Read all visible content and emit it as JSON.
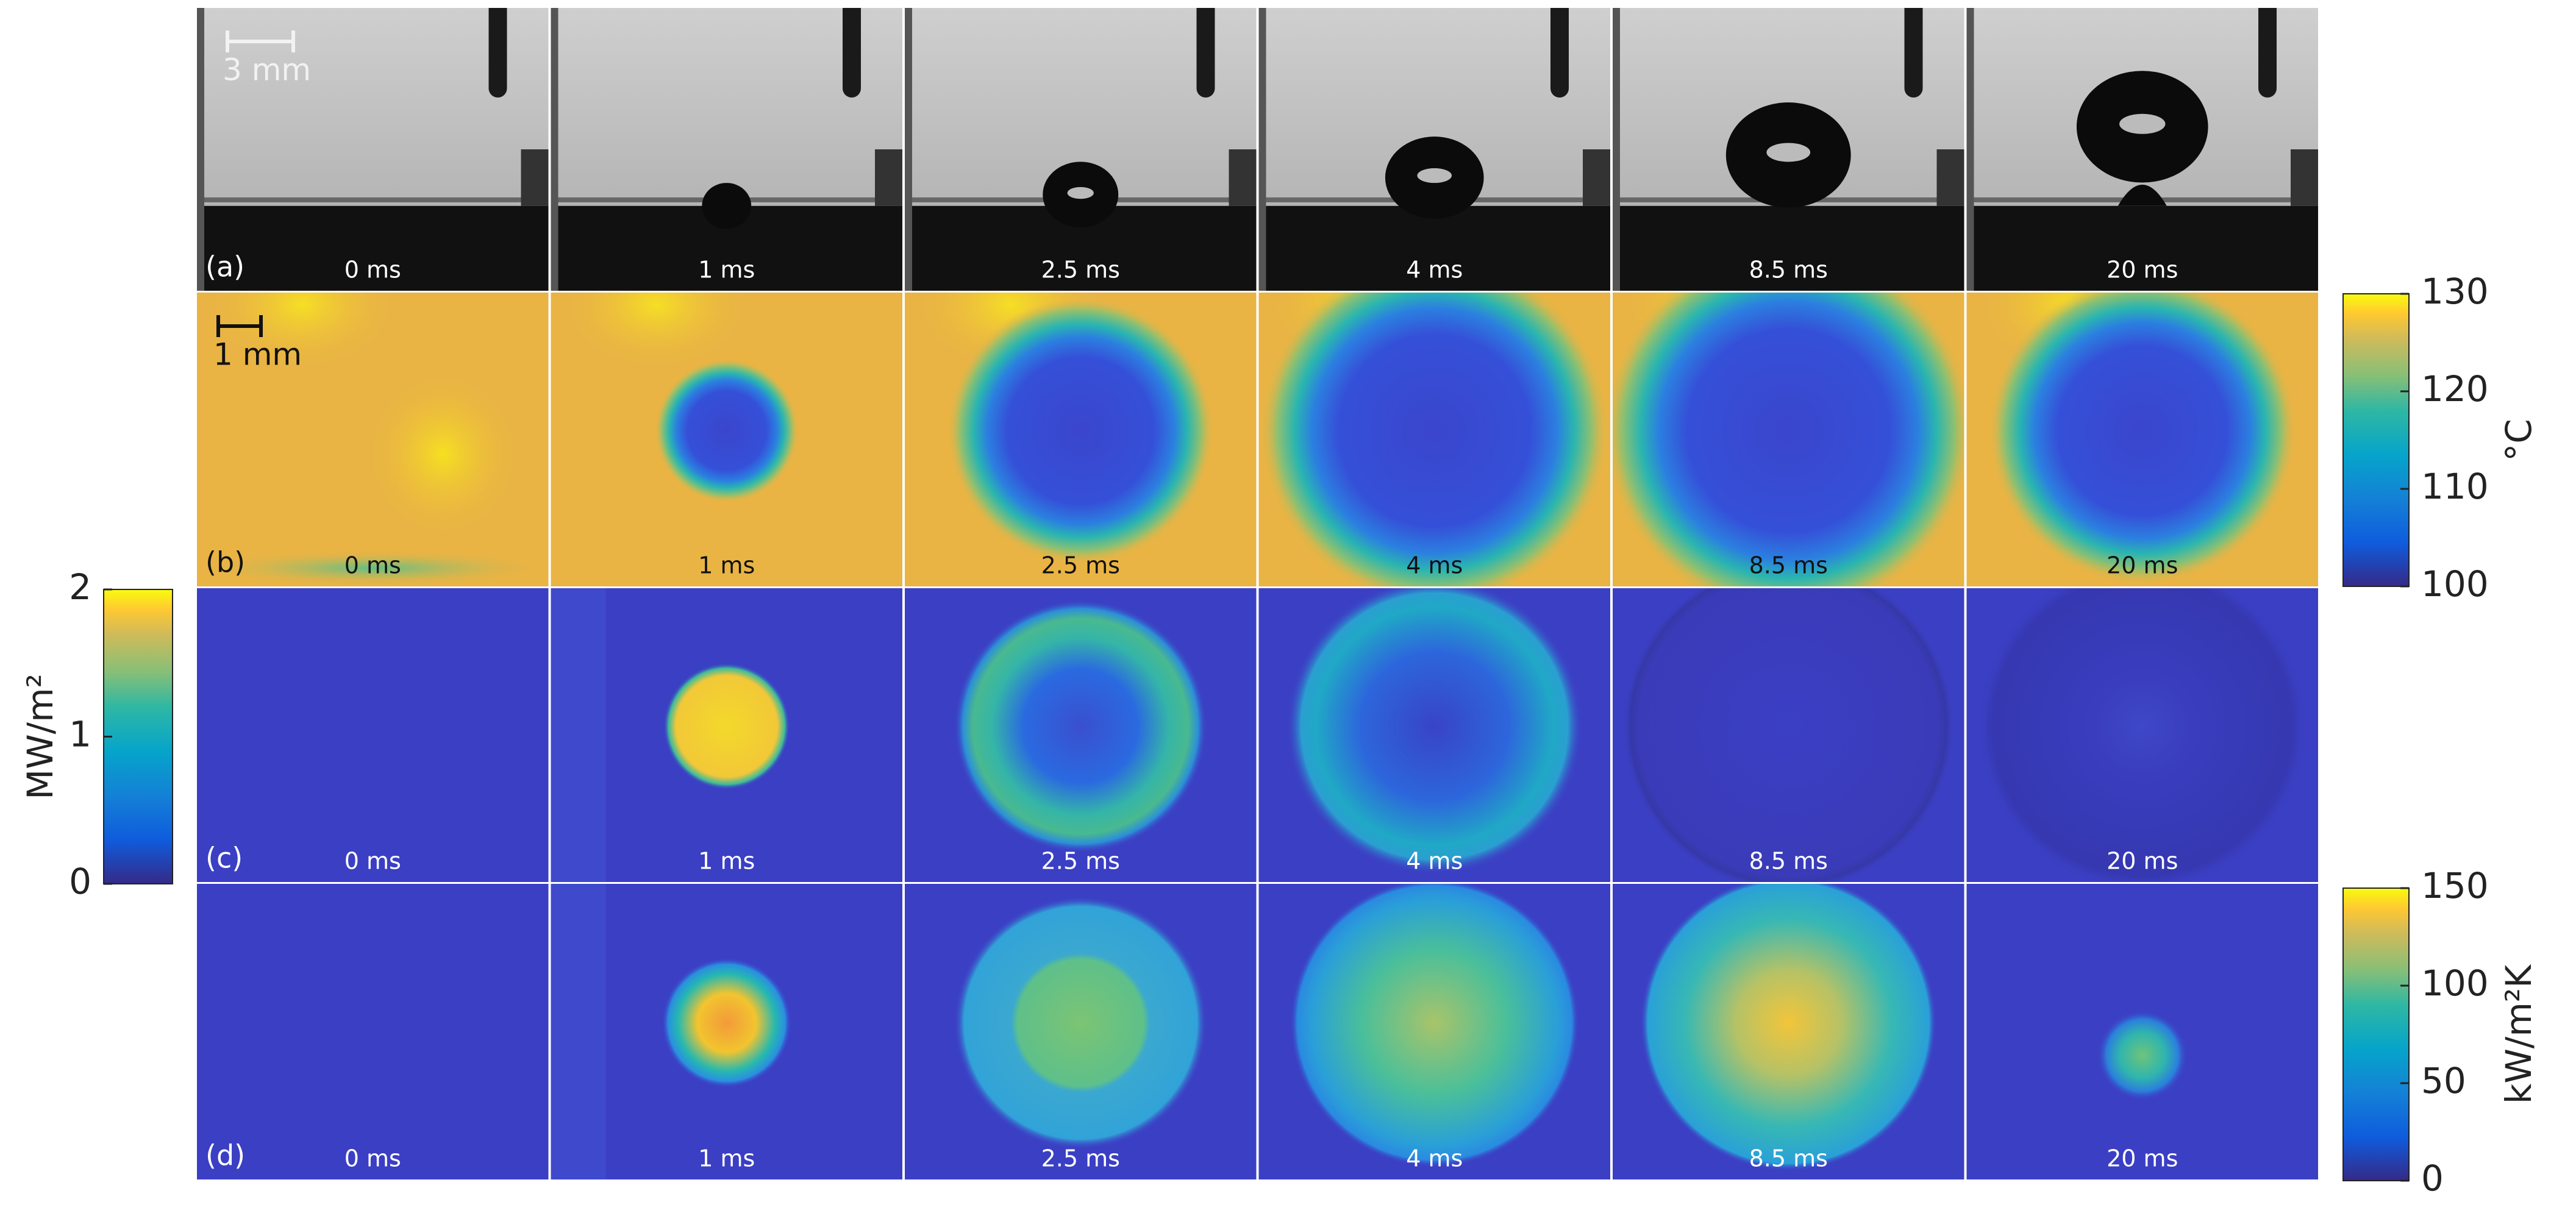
{
  "rows": [
    {
      "label": "(a)",
      "times": [
        "0 ms",
        "1 ms",
        "2.5 ms",
        "4 ms",
        "8.5 ms",
        "20 ms"
      ]
    },
    {
      "label": "(b)",
      "times": [
        "0 ms",
        "1 ms",
        "2.5 ms",
        "4 ms",
        "8.5 ms",
        "20 ms"
      ]
    },
    {
      "label": "(c)",
      "times": [
        "0 ms",
        "1 ms",
        "2.5 ms",
        "4 ms",
        "8.5 ms",
        "20 ms"
      ]
    },
    {
      "label": "(d)",
      "times": [
        "0 ms",
        "1 ms",
        "2.5 ms",
        "4 ms",
        "8.5 ms",
        "20 ms"
      ]
    }
  ],
  "scale_bars": [
    "3 mm",
    "1 mm"
  ],
  "colorbars": [
    {
      "label": "MW/m²",
      "lim": [
        0,
        2
      ],
      "ticks": [
        0,
        1,
        2
      ]
    },
    {
      "label": "°C",
      "lim": [
        100,
        130
      ],
      "ticks": [
        100,
        110,
        120,
        130
      ]
    },
    {
      "label": "kW/m²K",
      "lim": [
        0,
        150
      ],
      "ticks": [
        0,
        50,
        100,
        150
      ]
    }
  ]
}
